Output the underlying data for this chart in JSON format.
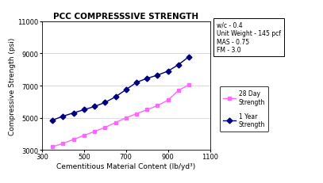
{
  "title": "PCC COMPRESSSIVE STRENGTH",
  "xlabel": "Cementitious Material Content (lb/yd³)",
  "ylabel": "Compressive Strength (psi)",
  "xlim": [
    300,
    1100
  ],
  "ylim": [
    3000,
    11000
  ],
  "xticks": [
    300,
    500,
    700,
    900,
    1100
  ],
  "yticks": [
    3000,
    5000,
    7000,
    9000,
    11000
  ],
  "day28_x": [
    350,
    400,
    450,
    500,
    550,
    600,
    650,
    700,
    750,
    800,
    850,
    900,
    950,
    1000
  ],
  "day28_y": [
    3200,
    3400,
    3650,
    3900,
    4150,
    4400,
    4700,
    5000,
    5250,
    5500,
    5750,
    6100,
    6700,
    7050
  ],
  "year1_x": [
    350,
    400,
    450,
    500,
    550,
    600,
    650,
    700,
    750,
    800,
    850,
    900,
    950,
    1000
  ],
  "year1_y": [
    4850,
    5100,
    5300,
    5500,
    5700,
    5950,
    6300,
    6750,
    7200,
    7450,
    7650,
    7900,
    8300,
    8800
  ],
  "color_28day": "#FF66FF",
  "color_1year": "#000080",
  "annotation_text": "w/c - 0.4\nUnit Weight - 145 pcf\nMAS - 0.75\nFM - 3.0",
  "legend_28day": "28 Day\nStrength",
  "legend_1year": "1 Year\nStrength",
  "bg_color": "#ffffff",
  "title_fontsize": 7.5,
  "axis_fontsize": 6.5,
  "tick_fontsize": 6,
  "annot_fontsize": 5.5,
  "legend_fontsize": 5.5
}
